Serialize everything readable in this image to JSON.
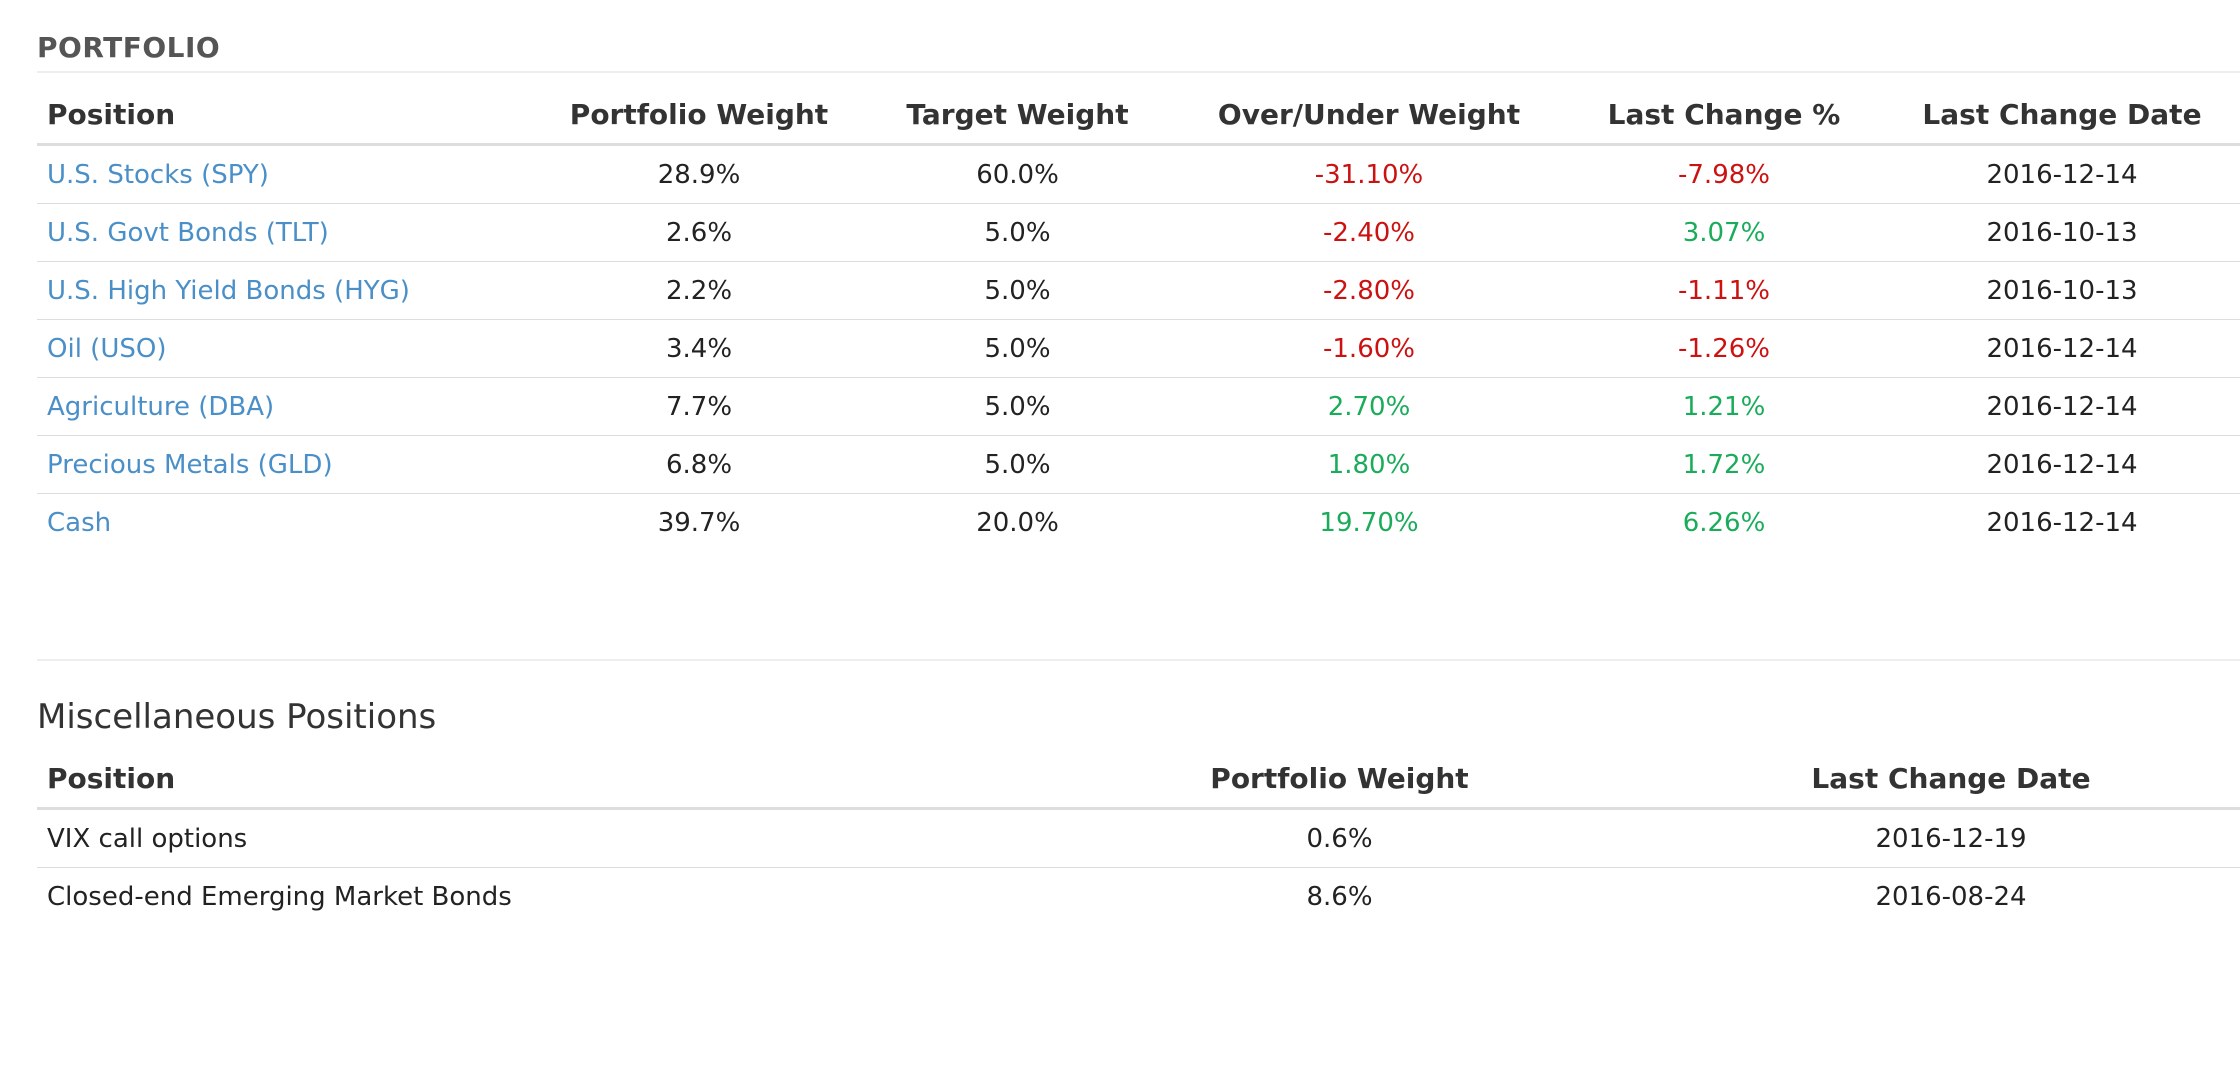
{
  "portfolio": {
    "title": "PORTFOLIO",
    "columns": [
      "Position",
      "Portfolio Weight",
      "Target Weight",
      "Over/Under Weight",
      "Last Change %",
      "Last Change Date"
    ],
    "rows": [
      {
        "position": "U.S. Stocks (SPY)",
        "portfolio_weight": "28.9%",
        "target_weight": "60.0%",
        "over_under": "-31.10%",
        "over_under_sign": "neg",
        "last_change_pct": "-7.98%",
        "last_change_sign": "neg",
        "last_change_date": "2016-12-14"
      },
      {
        "position": "U.S. Govt Bonds (TLT)",
        "portfolio_weight": "2.6%",
        "target_weight": "5.0%",
        "over_under": "-2.40%",
        "over_under_sign": "neg",
        "last_change_pct": "3.07%",
        "last_change_sign": "pos",
        "last_change_date": "2016-10-13"
      },
      {
        "position": "U.S. High Yield Bonds (HYG)",
        "portfolio_weight": "2.2%",
        "target_weight": "5.0%",
        "over_under": "-2.80%",
        "over_under_sign": "neg",
        "last_change_pct": "-1.11%",
        "last_change_sign": "neg",
        "last_change_date": "2016-10-13"
      },
      {
        "position": "Oil (USO)",
        "portfolio_weight": "3.4%",
        "target_weight": "5.0%",
        "over_under": "-1.60%",
        "over_under_sign": "neg",
        "last_change_pct": "-1.26%",
        "last_change_sign": "neg",
        "last_change_date": "2016-12-14"
      },
      {
        "position": "Agriculture (DBA)",
        "portfolio_weight": "7.7%",
        "target_weight": "5.0%",
        "over_under": "2.70%",
        "over_under_sign": "pos",
        "last_change_pct": "1.21%",
        "last_change_sign": "pos",
        "last_change_date": "2016-12-14"
      },
      {
        "position": "Precious Metals (GLD)",
        "portfolio_weight": "6.8%",
        "target_weight": "5.0%",
        "over_under": "1.80%",
        "over_under_sign": "pos",
        "last_change_pct": "1.72%",
        "last_change_sign": "pos",
        "last_change_date": "2016-12-14"
      },
      {
        "position": "Cash",
        "portfolio_weight": "39.7%",
        "target_weight": "20.0%",
        "over_under": "19.70%",
        "over_under_sign": "pos",
        "last_change_pct": "6.26%",
        "last_change_sign": "pos",
        "last_change_date": "2016-12-14"
      }
    ]
  },
  "misc": {
    "title": "Miscellaneous Positions",
    "columns": [
      "Position",
      "Portfolio Weight",
      "Last Change Date"
    ],
    "rows": [
      {
        "position": "VIX call options",
        "portfolio_weight": "0.6%",
        "last_change_date": "2016-12-19"
      },
      {
        "position": "Closed-end Emerging Market Bonds",
        "portfolio_weight": "8.6%",
        "last_change_date": "2016-08-24"
      }
    ]
  },
  "colors": {
    "link": "#4a8fc7",
    "negative": "#cc1111",
    "positive": "#1aac5a"
  }
}
